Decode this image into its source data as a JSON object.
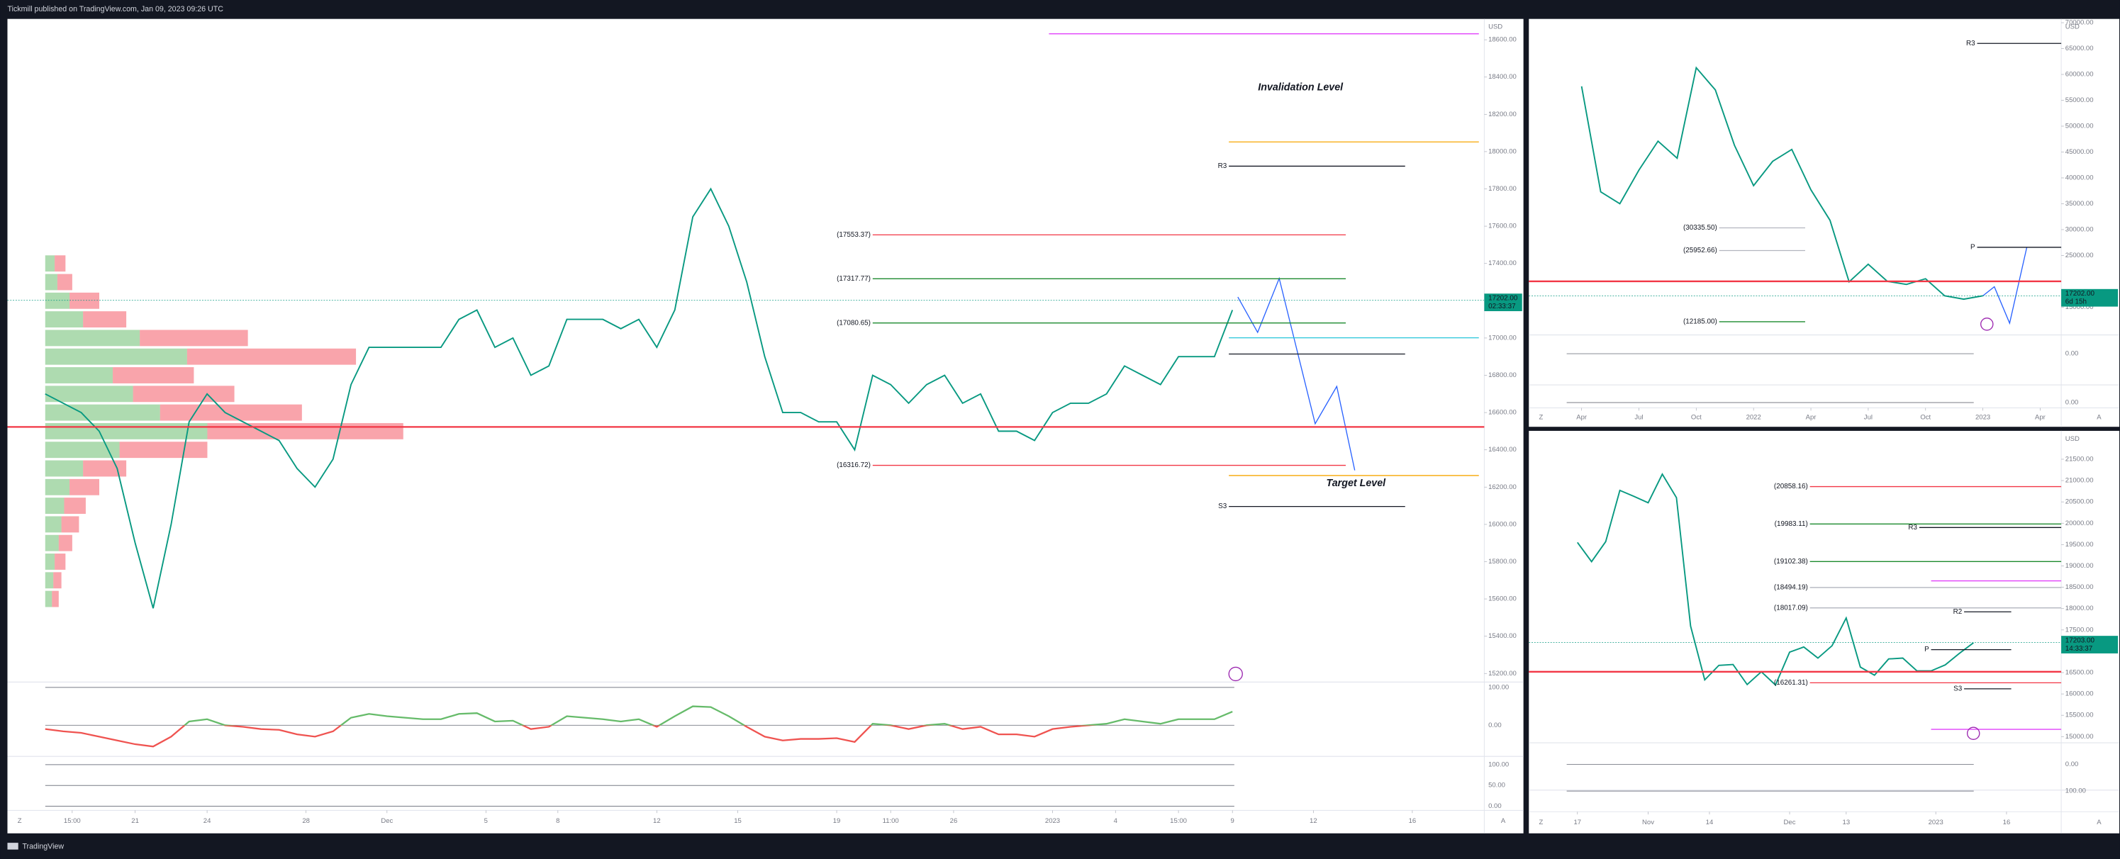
{
  "header": {
    "text": "Tickmill published on TradingView.com, Jan 09, 2023 09:26 UTC"
  },
  "footer": {
    "brand": "TradingView"
  },
  "controls": {
    "zoom": "Z",
    "auto": "A"
  },
  "annotations": {
    "invalidation": "Invalidation Level",
    "target": "Target Level"
  },
  "chart_data": [
    {
      "type": "line",
      "currency": "USD",
      "color": "#089981",
      "xlim": [
        -2.1,
        80
      ],
      "ylim": [
        15154,
        18712
      ],
      "yticks": [
        {
          "value": 15200,
          "label": "15200.00"
        },
        {
          "value": 15400,
          "label": "15400.00"
        },
        {
          "value": 15600,
          "label": "15600.00"
        },
        {
          "value": 15800,
          "label": "15800.00"
        },
        {
          "value": 16000,
          "label": "16000.00"
        },
        {
          "value": 16200,
          "label": "16200.00"
        },
        {
          "value": 16400,
          "label": "16400.00"
        },
        {
          "value": 16600,
          "label": "16600.00"
        },
        {
          "value": 16800,
          "label": "16800.00"
        },
        {
          "value": 17000,
          "label": "17000.00"
        },
        {
          "value": 17400,
          "label": "17400.00"
        },
        {
          "value": 17600,
          "label": "17600.00"
        },
        {
          "value": 17800,
          "label": "17800.00"
        },
        {
          "value": 18000,
          "label": "18000.00"
        },
        {
          "value": 18200,
          "label": "18200.00"
        },
        {
          "value": 18400,
          "label": "18400.00"
        },
        {
          "value": 18600,
          "label": "18600.00"
        }
      ],
      "xticks": [
        {
          "value": 1.5,
          "label": "15:00"
        },
        {
          "value": 5,
          "label": "21"
        },
        {
          "value": 9,
          "label": "24"
        },
        {
          "value": 14.5,
          "label": "28"
        },
        {
          "value": 19,
          "label": "Dec"
        },
        {
          "value": 24.5,
          "label": "5"
        },
        {
          "value": 28.5,
          "label": "8"
        },
        {
          "value": 34,
          "label": "12"
        },
        {
          "value": 38.5,
          "label": "15"
        },
        {
          "value": 44,
          "label": "19"
        },
        {
          "value": 47,
          "label": "11:00"
        },
        {
          "value": 50.5,
          "label": "26"
        },
        {
          "value": 56,
          "label": "2023"
        },
        {
          "value": 59.5,
          "label": "4"
        },
        {
          "value": 63,
          "label": "15:00"
        },
        {
          "value": 66,
          "label": "9"
        },
        {
          "value": 70.5,
          "label": "12"
        },
        {
          "value": 76,
          "label": "16"
        }
      ],
      "values": [
        16700,
        16650,
        16600,
        16500,
        16300,
        15900,
        15550,
        16000,
        16550,
        16700,
        16600,
        16550,
        16500,
        16450,
        16300,
        16200,
        16350,
        16750,
        16950,
        16950,
        16950,
        16950,
        16950,
        17100,
        17150,
        16950,
        17000,
        16800,
        16850,
        17100,
        17100,
        17100,
        17050,
        17100,
        16950,
        17150,
        17650,
        17800,
        17600,
        17300,
        16900,
        16600,
        16600,
        16550,
        16550,
        16400,
        16800,
        16750,
        16650,
        16750,
        16800,
        16650,
        16700,
        16500,
        16500,
        16450,
        16600,
        16650,
        16650,
        16700,
        16850,
        16800,
        16750,
        16900,
        16900,
        16900,
        17150
      ],
      "projection": {
        "color": "#2962ff",
        "x": [
          66.3,
          67.4,
          68.6,
          70.6,
          71.8,
          72.8
        ],
        "values": [
          17220,
          17030,
          17320,
          16540,
          16740,
          16290
        ]
      },
      "profile": {
        "lim": [
          0,
          1065
        ],
        "buy_color": "#4caf50",
        "sell_color": "#f23645",
        "prices": [
          15600,
          15700,
          15800,
          15900,
          16000,
          16100,
          16200,
          16300,
          16400,
          16500,
          16600,
          16700,
          16800,
          16900,
          17000,
          17100,
          17200,
          17300,
          17400
        ],
        "buy": [
          5,
          6,
          7,
          10,
          12,
          14,
          18,
          28,
          55,
          120,
          85,
          65,
          50,
          105,
          70,
          28,
          18,
          9,
          7
        ],
        "sell": [
          5,
          6,
          8,
          10,
          13,
          16,
          22,
          32,
          65,
          145,
          105,
          75,
          60,
          125,
          80,
          32,
          22,
          11,
          8
        ]
      },
      "levels": [
        {
          "value": 17553.37,
          "label": "(17553.37)",
          "color": "#f23645",
          "from": 46,
          "to": 72.3
        },
        {
          "value": 17317.77,
          "label": "(17317.77)",
          "color": "#1b8a2e",
          "from": 46,
          "to": 72.3
        },
        {
          "value": 17080.65,
          "label": "(17080.65)",
          "color": "#1b8a2e",
          "from": 46,
          "to": 72.3
        },
        {
          "value": 16316.72,
          "label": "(16316.72)",
          "color": "#f23645",
          "from": 46,
          "to": 72.3
        },
        {
          "value": 17922,
          "label": "R3",
          "color": "#131722",
          "from": 65.8,
          "to": 75.6
        },
        {
          "value": 16096,
          "label": "S3",
          "color": "#131722",
          "from": 65.8,
          "to": 75.6
        },
        {
          "value": 16914,
          "color": "#131722",
          "from": 65.8,
          "to": 75.6
        },
        {
          "value": 18052,
          "color": "#f7a600",
          "from": 65.8,
          "to": 79.7
        },
        {
          "value": 16262,
          "color": "#f7a600",
          "from": 65.8,
          "to": 79.7
        },
        {
          "value": 18632,
          "color": "#e040fb",
          "from": 55.8,
          "to": 79.7
        },
        {
          "value": 17001,
          "color": "#26c6da",
          "from": 65.8,
          "to": 79.7
        },
        {
          "value": 16523,
          "color": "#f23645",
          "from": -2.1,
          "to": 80,
          "width": 1.2
        }
      ],
      "last": {
        "value": 17202,
        "label": "17202.00",
        "countdown": "02:33:37",
        "color": "#089981"
      },
      "panels": [
        {
          "ylim": [
            -82,
            114
          ],
          "yticks": [
            {
              "value": 100,
              "label": "100.00"
            },
            {
              "value": 0,
              "label": "0.00"
            }
          ],
          "up_color": "#66bb6a",
          "down_color": "#ef5350",
          "values": [
            -10,
            -16,
            -20,
            -30,
            -40,
            -50,
            -56,
            -30,
            10,
            16,
            0,
            -4,
            -10,
            -12,
            -24,
            -30,
            -16,
            20,
            30,
            24,
            20,
            16,
            16,
            30,
            32,
            10,
            12,
            -10,
            -4,
            24,
            20,
            16,
            10,
            16,
            -4,
            24,
            50,
            48,
            24,
            -4,
            -30,
            -40,
            -36,
            -36,
            -34,
            -44,
            4,
            0,
            -10,
            0,
            4,
            -10,
            -4,
            -24,
            -24,
            -30,
            -10,
            -4,
            0,
            4,
            16,
            10,
            4,
            16,
            16,
            16,
            36
          ]
        },
        {
          "ylim": [
            -10,
            120
          ],
          "yticks": [
            {
              "value": 100,
              "label": "100.00"
            },
            {
              "value": 50,
              "label": "50.00"
            },
            {
              "value": 0,
              "label": "0.00"
            }
          ]
        }
      ]
    },
    {
      "type": "line",
      "currency": "USD",
      "color": "#089981",
      "xlim": [
        -2.76,
        25.1
      ],
      "ylim": [
        9630,
        70735
      ],
      "yticks": [
        {
          "value": 15000,
          "label": "15000.00"
        },
        {
          "value": 25000,
          "label": "25000.00"
        },
        {
          "value": 30000,
          "label": "30000.00"
        },
        {
          "value": 35000,
          "label": "35000.00"
        },
        {
          "value": 40000,
          "label": "40000.00"
        },
        {
          "value": 45000,
          "label": "45000.00"
        },
        {
          "value": 50000,
          "label": "50000.00"
        },
        {
          "value": 55000,
          "label": "55000.00"
        },
        {
          "value": 60000,
          "label": "60000.00"
        },
        {
          "value": 65000,
          "label": "65000.00"
        },
        {
          "value": 70000,
          "label": "70000.00"
        }
      ],
      "xticks": [
        {
          "value": 0,
          "label": "Apr"
        },
        {
          "value": 3,
          "label": "Jul"
        },
        {
          "value": 6,
          "label": "Oct"
        },
        {
          "value": 9,
          "label": "2022"
        },
        {
          "value": 12,
          "label": "Apr"
        },
        {
          "value": 15,
          "label": "Jul"
        },
        {
          "value": 18,
          "label": "Oct"
        },
        {
          "value": 21,
          "label": "2023"
        },
        {
          "value": 24,
          "label": "Apr"
        }
      ],
      "values": [
        57700,
        37300,
        35000,
        41500,
        47100,
        43800,
        61300,
        57000,
        46300,
        38500,
        43200,
        45500,
        37700,
        31800,
        19900,
        23300,
        20000,
        19400,
        20500,
        17200,
        16550,
        17200
      ],
      "projection": {
        "color": "#2962ff",
        "x": [
          21,
          21.6,
          22.4,
          23.3
        ],
        "values": [
          17200,
          18950,
          11900,
          26580
        ]
      },
      "levels": [
        {
          "value": 66000,
          "label": "R3",
          "color": "#131722",
          "from": 20.7,
          "to": 25.1
        },
        {
          "value": 26580,
          "label": "P",
          "color": "#131722",
          "from": 20.7,
          "to": 25.1
        },
        {
          "value": 30335.5,
          "label": "(30335.50)",
          "color": "#b2b5be",
          "from": 7.2,
          "to": 11.7
        },
        {
          "value": 25952.66,
          "label": "(25952.66)",
          "color": "#b2b5be",
          "from": 7.2,
          "to": 11.7
        },
        {
          "value": 12185,
          "label": "(12185.00)",
          "color": "#1b8a2e",
          "from": 7.2,
          "to": 11.7
        },
        {
          "value": 20000,
          "color": "#f23645",
          "from": -2.76,
          "to": 25.1,
          "width": 1.2
        }
      ],
      "last": {
        "value": 17202,
        "label": "17202.00",
        "countdown": "6d 15h",
        "color": "#089981"
      },
      "panels": [
        {
          "ylim": [
            -100,
            60
          ],
          "yticks": [
            {
              "value": 0,
              "label": "0.00"
            }
          ]
        },
        {
          "ylim": [
            -30,
            100
          ],
          "yticks": [
            {
              "value": 0,
              "label": "0.00"
            }
          ]
        }
      ]
    },
    {
      "type": "line",
      "currency": "USD",
      "color": "#089981",
      "xlim": [
        -10.3,
        102.6
      ],
      "ylim": [
        14854,
        22165
      ],
      "yticks": [
        {
          "value": 15000,
          "label": "15000.00"
        },
        {
          "value": 15500,
          "label": "15500.00"
        },
        {
          "value": 16000,
          "label": "16000.00"
        },
        {
          "value": 16500,
          "label": "16500.00"
        },
        {
          "value": 17500,
          "label": "17500.00"
        },
        {
          "value": 18000,
          "label": "18000.00"
        },
        {
          "value": 18500,
          "label": "18500.00"
        },
        {
          "value": 19000,
          "label": "19000.00"
        },
        {
          "value": 19500,
          "label": "19500.00"
        },
        {
          "value": 20000,
          "label": "20000.00"
        },
        {
          "value": 20500,
          "label": "20500.00"
        },
        {
          "value": 21000,
          "label": "21000.00"
        },
        {
          "value": 21500,
          "label": "21500.00"
        }
      ],
      "xticks": [
        {
          "value": 0,
          "label": "17"
        },
        {
          "value": 15,
          "label": "Nov"
        },
        {
          "value": 28,
          "label": "14"
        },
        {
          "value": 45,
          "label": "Dec"
        },
        {
          "value": 57,
          "label": "13"
        },
        {
          "value": 76,
          "label": "2023"
        },
        {
          "value": 91,
          "label": "16"
        }
      ],
      "x": [
        0,
        3,
        6,
        9,
        12,
        15,
        18,
        21,
        24,
        27,
        30,
        33,
        36,
        39,
        42,
        45,
        48,
        51,
        54,
        57,
        60,
        63,
        66,
        69,
        72,
        75,
        78,
        81,
        84
      ],
      "values": [
        19550,
        19100,
        19570,
        20770,
        20630,
        20480,
        21150,
        20600,
        17590,
        16330,
        16670,
        16690,
        16220,
        16520,
        16210,
        16980,
        17100,
        16840,
        17130,
        17780,
        16630,
        16440,
        16820,
        16840,
        16540,
        16540,
        16680,
        16950,
        17200
      ],
      "levels": [
        {
          "value": 20858.16,
          "label": "(20858.16)",
          "color": "#f23645",
          "from": 49.3,
          "to": 102.6
        },
        {
          "value": 19983.11,
          "label": "(19983.11)",
          "color": "#1b8a2e",
          "from": 49.3,
          "to": 102.6
        },
        {
          "value": 19102.38,
          "label": "(19102.38)",
          "color": "#1b8a2e",
          "from": 49.3,
          "to": 102.6
        },
        {
          "value": 18494.19,
          "label": "(18494.19)",
          "color": "#b2b5be",
          "from": 49.3,
          "to": 102.6
        },
        {
          "value": 18017.09,
          "label": "(18017.09)",
          "color": "#b2b5be",
          "from": 49.3,
          "to": 102.6
        },
        {
          "value": 16261.31,
          "label": "(16261.31)",
          "color": "#f23645",
          "from": 49.3,
          "to": 102.6
        },
        {
          "value": 19900,
          "label": "R3",
          "color": "#131722",
          "from": 72.5,
          "to": 102.6
        },
        {
          "value": 17924,
          "label": "R2",
          "color": "#131722",
          "from": 82,
          "to": 92
        },
        {
          "value": 17038,
          "label": "P",
          "color": "#131722",
          "from": 75,
          "to": 92
        },
        {
          "value": 16120,
          "label": "S3",
          "color": "#131722",
          "from": 82,
          "to": 92
        },
        {
          "value": 18650,
          "color": "#e040fb",
          "from": 75,
          "to": 102.6
        },
        {
          "value": 15170,
          "color": "#e040fb",
          "from": 75,
          "to": 102.6
        },
        {
          "value": 16520,
          "color": "#f23645",
          "from": -10.3,
          "to": 102.6,
          "width": 1.2
        }
      ],
      "last": {
        "value": 17203,
        "label": "17203.00",
        "countdown": "14:33:37",
        "color": "#089981"
      },
      "panels": [
        {
          "ylim": [
            -119,
            100
          ],
          "yticks": [
            {
              "value": 0,
              "label": "0.00"
            }
          ]
        },
        {
          "ylim": [
            -10,
            105
          ],
          "yticks": [
            {
              "value": 100,
              "label": "100.00"
            }
          ]
        }
      ]
    }
  ]
}
